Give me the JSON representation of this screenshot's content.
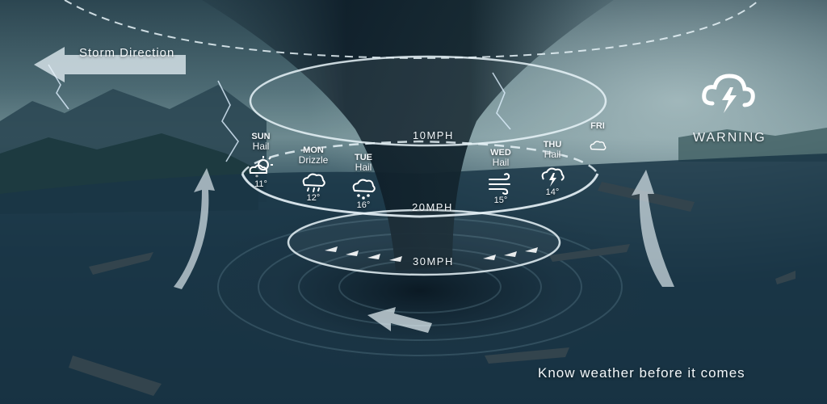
{
  "storm_direction_label": "Storm Direction",
  "warning": {
    "label": "WARNING",
    "icon": "lightning-cloud-icon"
  },
  "rings": [
    {
      "speed_label": "10MPH"
    },
    {
      "speed_label": "20MPH"
    },
    {
      "speed_label": "30MPH"
    }
  ],
  "forecast": [
    {
      "day": "SUN",
      "condition": "Hail",
      "temp": "11°",
      "icon": "sun-snow-icon"
    },
    {
      "day": "MON",
      "condition": "Drizzle",
      "temp": "12°",
      "icon": "drizzle-cloud-icon"
    },
    {
      "day": "TUE",
      "condition": "Hail",
      "temp": "16°",
      "icon": "hail-cloud-icon"
    },
    {
      "day": "WED",
      "condition": "Hail",
      "temp": "15°",
      "icon": "wind-icon"
    },
    {
      "day": "THU",
      "condition": "Hail",
      "temp": "14°",
      "icon": "thunder-cloud-icon"
    },
    {
      "day": "FRI",
      "condition": "",
      "temp": "",
      "icon": "cloud-icon"
    }
  ],
  "tagline": "Know weather before it comes",
  "colors": {
    "ring": "#e8f3f8",
    "text": "#f2f7fa",
    "sea_dark": "#0d2030",
    "sky": "#6d8a90"
  }
}
